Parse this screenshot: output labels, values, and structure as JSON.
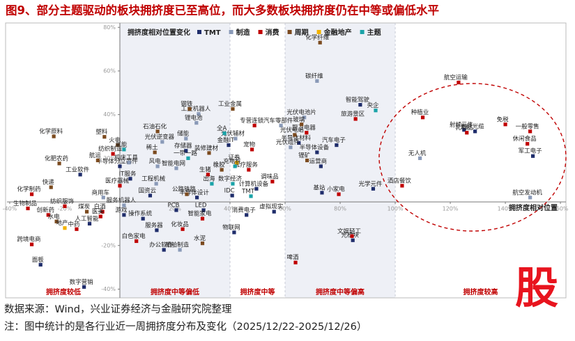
{
  "chart_data": {
    "type": "scatter",
    "title": "图9、部分主题驱动的板块拥挤度已至高位，而大多数板块拥挤度仍在中等或偏低水平",
    "legend_title": "拥挤度相对位置变化",
    "x_label": "拥挤度相对位置",
    "source": "数据来源：Wind，兴业证券经济与金融研究院整理",
    "note": "注：图中统计的是各行业近一周拥挤度分布及变化（2025/12/22-2025/12/26）",
    "logo": "股",
    "xlim": [
      -41,
      162
    ],
    "ylim": [
      -44,
      82
    ],
    "xticks": [
      {
        "value": -40,
        "label": "-40%"
      },
      {
        "value": -20,
        "label": "-20%"
      },
      {
        "value": 20,
        "label": "20%"
      },
      {
        "value": 40,
        "label": "40%"
      },
      {
        "value": 60,
        "label": "60%"
      },
      {
        "value": 80,
        "label": "80%"
      },
      {
        "value": 100,
        "label": "100%"
      },
      {
        "value": 120,
        "label": "120%"
      },
      {
        "value": 140,
        "label": "140%"
      },
      {
        "value": 160,
        "label": "160%"
      }
    ],
    "yticks": [
      {
        "value": -40,
        "label": "-40%"
      },
      {
        "value": -20,
        "label": "-20%"
      },
      {
        "value": 20,
        "label": "20%"
      },
      {
        "value": 40,
        "label": "40%"
      },
      {
        "value": 60,
        "label": "60%"
      },
      {
        "value": 80,
        "label": "80%"
      }
    ],
    "zones": [
      {
        "label": "拥挤度较低",
        "range": [
          -41,
          0
        ],
        "shaded": false
      },
      {
        "label": "拥挤度中等偏低",
        "range": [
          0,
          40
        ],
        "shaded": true
      },
      {
        "label": "拥挤度中等",
        "range": [
          40,
          60
        ],
        "shaded": false
      },
      {
        "label": "拥挤度中等偏高",
        "range": [
          60,
          100
        ],
        "shaded": true
      },
      {
        "label": "拥挤度较高",
        "range": [
          100,
          162
        ],
        "shaded": false
      }
    ],
    "series": [
      {
        "name": "TMT",
        "color": "#1f2d6b",
        "labels": [
          "智能驾驶",
          "射频元件",
          "光纤光缆",
          "军工电子",
          "半导体分立器件",
          "工业软件",
          "汽车电子",
          "金融IT",
          "存储器",
          "半导体材料",
          "半导体设备",
          "运营商",
          "IT服务",
          "国资云",
          "半导体设计",
          "IDC",
          "计算机设备",
          "基站",
          "光学元件",
          "游戏",
          "PCB",
          "LED",
          "消费电子",
          "虚拟现实",
          "操作系统",
          "服务器",
          "物联网",
          "办公软件",
          "光模块",
          "面板",
          "数字营销",
          "人工智能"
        ],
        "x": [
          87.3,
          125,
          129,
          150,
          0,
          -14.4,
          78.7,
          39.5,
          24,
          65,
          71.6,
          73,
          3.8,
          11,
          28,
          40.8,
          49.6,
          73.4,
          92,
          1.5,
          20.5,
          30.4,
          46,
          56,
          8.4,
          13.4,
          41.5,
          16,
          84.6,
          -28.8,
          -13,
          -11
        ],
        "y": [
          44.5,
          33,
          32.3,
          21,
          16.3,
          12.5,
          26,
          26,
          23.4,
          27,
          22.7,
          16.3,
          10.6,
          2.9,
          2,
          2.9,
          6,
          4.2,
          6,
          -6,
          -3.8,
          -3.8,
          -6,
          -4.5,
          -7.7,
          -13,
          -14,
          -22,
          -17.6,
          -28.8,
          -39,
          -10
        ]
      },
      {
        "name": "制造",
        "color": "#8a9ab8",
        "labels": [
          "碳纤维",
          "工业机器人",
          "光伏电池片",
          "无人机",
          "航空发动机",
          "商用车",
          "光伏逆变器",
          "锂电池",
          "汽车零部件",
          "储能",
          "光伏辅材",
          "光伏组件",
          "机床工具",
          "风电",
          "智能电网",
          "工程机械",
          "服务机器人",
          "船舶制造"
        ],
        "x": [
          71.6,
          28.6,
          67,
          109,
          149,
          -6,
          15.4,
          27.8,
          58.5,
          24,
          42,
          62,
          3.3,
          13.7,
          20.5,
          13.2,
          1.5,
          21.8
        ],
        "y": [
          55.4,
          40.3,
          38.7,
          20,
          2,
          2,
          27.5,
          36.2,
          35,
          29,
          29,
          25,
          18,
          16.3,
          15.4,
          8.3,
          -1.6,
          -22
        ]
      },
      {
        "name": "消费",
        "color": "#c00000",
        "labels": [
          "航空运输",
          "种植业",
          "免税",
          "一般零售",
          "乳制品",
          "休闲食品",
          "酒店餐饮",
          "纺织制造",
          "医疗器械",
          "化学制药",
          "生物制品",
          "纺织服饰",
          "白酒",
          "创新药",
          "医美",
          "中药",
          "跨境电商",
          "专营连锁",
          "旅游景区",
          "厨卫电器",
          "宠物",
          "医疗服务",
          "生猪",
          "调味品",
          "小家电",
          "智能家电",
          "化妆品",
          "白色家电",
          "文娱轻工",
          "啤酒"
        ],
        "x": [
          123,
          110,
          140,
          149,
          126,
          148,
          102.5,
          -2.5,
          0,
          -32,
          -33.4,
          -20,
          -6.3,
          -26,
          -7,
          -15.7,
          -32,
          48.9,
          85.6,
          67.8,
          48,
          46.8,
          32,
          55.4,
          79.5,
          30,
          22.8,
          6,
          84.3,
          63.8
        ],
        "y": [
          54.7,
          38.7,
          35.5,
          32.3,
          31.7,
          26.6,
          7.4,
          22,
          7.4,
          3.5,
          -3,
          -2,
          -4.5,
          -6,
          -6.7,
          -12.5,
          -19.5,
          35,
          38,
          31.7,
          24,
          14.7,
          12.5,
          9.3,
          3.5,
          -7.7,
          -12.5,
          -18,
          -15.7,
          -27.8
        ]
      },
      {
        "name": "周期",
        "color": "#7b4a1e",
        "labels": [
          "化学纤维",
          "钢铁",
          "工业金属",
          "化学原料",
          "塑料",
          "化肥农药",
          "航运",
          "火电",
          "快递",
          "煤炭",
          "水电",
          "石油石化",
          "玻璃",
          "光伏电站",
          "装修建材",
          "稀土",
          "锂矿",
          "橡胶",
          "公路铁路",
          "水泥"
        ],
        "x": [
          72.7,
          25.3,
          41,
          -24,
          -5.6,
          -22,
          -8,
          -0.8,
          -25,
          -12,
          -23,
          13.7,
          66,
          63.5,
          32.4,
          12.7,
          68,
          37,
          24.3,
          30
        ],
        "y": [
          73,
          42.6,
          42.6,
          30,
          29.8,
          17.6,
          19,
          26,
          6.7,
          -4.5,
          -9,
          32.3,
          35.5,
          30.7,
          22.4,
          22.7,
          19,
          14.7,
          3.5,
          -19
        ]
      },
      {
        "name": "金融地产",
        "color": "#f2b200",
        "labels": [
          "地产",
          "证券"
        ],
        "x": [
          -20,
          42.5
        ],
        "y": [
          -12,
          18
        ]
      },
      {
        "name": "主题",
        "color": "#1aa3a8",
        "labels": [
          "央企",
          "全A",
          "氢能",
          "一带一路",
          "充电桩",
          "出海",
          "数字经济",
          "TMT"
        ],
        "x": [
          92.9,
          38,
          1.5,
          24.8,
          41.8,
          33.4,
          41,
          47.6
        ],
        "y": [
          41.9,
          31.4,
          24,
          20,
          16.3,
          8.3,
          8.3,
          2.6
        ]
      }
    ]
  }
}
